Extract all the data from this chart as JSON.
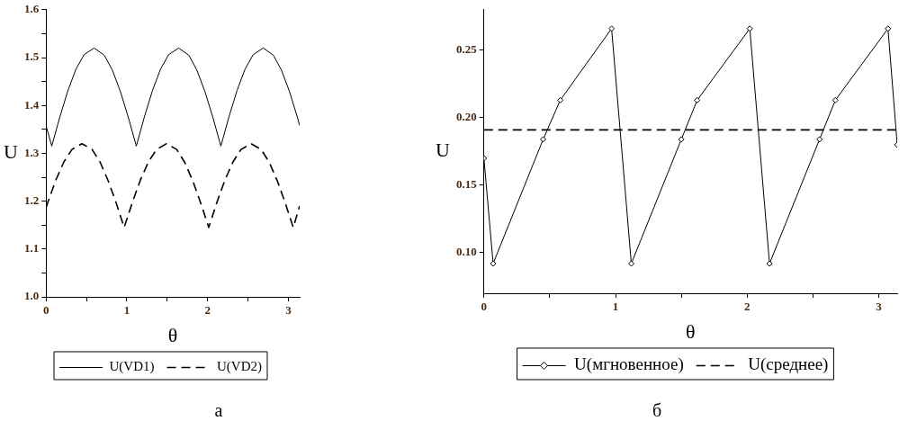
{
  "chart_data": [
    {
      "type": "line",
      "xlabel": "θ",
      "ylabel": "U",
      "xlim": [
        0,
        3.14
      ],
      "ylim": [
        1.0,
        1.6
      ],
      "xticks": [
        0,
        {
          "value": 0.5,
          "label": null
        },
        1,
        {
          "value": 1.5,
          "label": null
        },
        2,
        {
          "value": 2.5,
          "label": null
        },
        3
      ],
      "yticks": [
        {
          "value": 1.0,
          "label": "1.0"
        },
        {
          "value": 1.05,
          "label": null
        },
        1.1,
        {
          "value": 1.15,
          "label": null
        },
        1.2,
        {
          "value": 1.25,
          "label": null
        },
        1.3,
        {
          "value": 1.35,
          "label": null
        },
        1.4,
        {
          "value": 1.45,
          "label": null
        },
        1.5,
        {
          "value": 1.55,
          "label": null
        },
        1.6
      ],
      "grid": false,
      "legend": "bottom",
      "marker": "none",
      "series": [
        {
          "name": "U(VD1)",
          "color": "#000000",
          "line_style": "solid",
          "x": [
            0,
            0.07,
            0.17,
            0.27,
            0.37,
            0.47,
            0.594,
            0.72,
            0.82,
            0.92,
            1.02,
            1.117,
            1.217,
            1.317,
            1.417,
            1.517,
            1.641,
            1.767,
            1.867,
            1.967,
            2.067,
            2.164,
            2.264,
            2.364,
            2.464,
            2.564,
            2.688,
            2.814,
            2.914,
            3.014,
            3.114,
            3.14
          ],
          "values": [
            1.357,
            1.315,
            1.376,
            1.431,
            1.476,
            1.506,
            1.52,
            1.505,
            1.474,
            1.429,
            1.374,
            1.315,
            1.376,
            1.431,
            1.476,
            1.506,
            1.52,
            1.505,
            1.474,
            1.429,
            1.374,
            1.315,
            1.376,
            1.431,
            1.476,
            1.506,
            1.52,
            1.505,
            1.474,
            1.429,
            1.374,
            1.358
          ]
        },
        {
          "name": "U(VD2)",
          "color": "#000000",
          "line_style": "dashed",
          "x": [
            0,
            0.02,
            0.12,
            0.22,
            0.32,
            0.444,
            0.57,
            0.67,
            0.77,
            0.87,
            0.967,
            1.067,
            1.167,
            1.267,
            1.367,
            1.49,
            1.617,
            1.717,
            1.817,
            1.917,
            2.014,
            2.114,
            2.214,
            2.314,
            2.414,
            2.538,
            2.664,
            2.764,
            2.864,
            2.964,
            3.061,
            3.14
          ],
          "values": [
            1.187,
            1.197,
            1.244,
            1.282,
            1.308,
            1.32,
            1.308,
            1.281,
            1.242,
            1.195,
            1.145,
            1.197,
            1.244,
            1.282,
            1.308,
            1.32,
            1.308,
            1.281,
            1.242,
            1.195,
            1.145,
            1.197,
            1.244,
            1.282,
            1.308,
            1.32,
            1.308,
            1.281,
            1.242,
            1.195,
            1.145,
            1.19
          ]
        }
      ],
      "annotations": [
        "а"
      ]
    },
    {
      "type": "line",
      "xlabel": "θ",
      "ylabel": "U",
      "xlim": [
        0,
        3.14
      ],
      "ylim": [
        0.07,
        0.28
      ],
      "xticks": [
        0,
        {
          "value": 0.5,
          "label": null
        },
        1,
        {
          "value": 1.5,
          "label": null
        },
        2,
        {
          "value": 2.5,
          "label": null
        },
        3
      ],
      "yticks": [
        {
          "value": 0.1,
          "label": "0.10"
        },
        0.15,
        {
          "value": 0.2,
          "label": "0.20"
        },
        0.25
      ],
      "grid": false,
      "legend": "bottom",
      "series": [
        {
          "name": "U(мгновенное)",
          "color": "#000000",
          "line_style": "solid",
          "marker": "diamond",
          "x": [
            0,
            0.07,
            0.45,
            0.58,
            0.97,
            1.12,
            1.5,
            1.62,
            2.02,
            2.17,
            2.55,
            2.67,
            3.07,
            3.14
          ],
          "values": [
            0.17,
            0.092,
            0.184,
            0.213,
            0.266,
            0.092,
            0.184,
            0.213,
            0.266,
            0.092,
            0.184,
            0.213,
            0.266,
            0.18
          ]
        },
        {
          "name": "U(среднее)",
          "color": "#000000",
          "line_style": "dashed",
          "marker": "none",
          "x": [
            0,
            3.14
          ],
          "values": [
            0.191,
            0.191
          ]
        }
      ],
      "annotations": [
        "б"
      ]
    }
  ]
}
